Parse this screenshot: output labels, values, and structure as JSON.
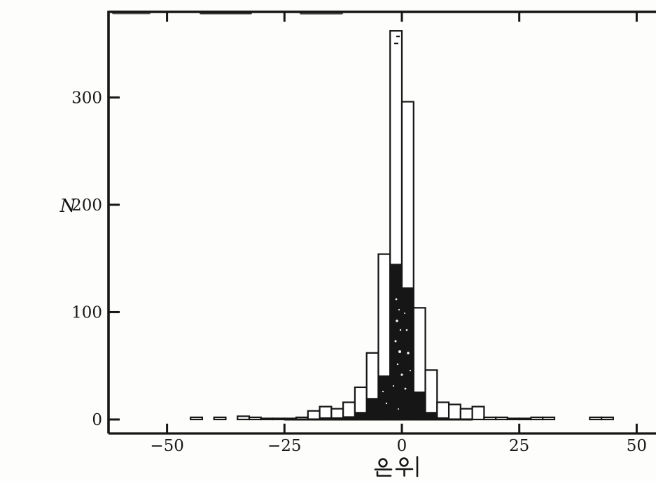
{
  "figure": {
    "background_color": "#fdfdfc",
    "ink_color": "#161616"
  },
  "chart_data": {
    "type": "bar",
    "subtype": "overlaid-step-histogram",
    "title": "",
    "xlabel": "은위",
    "ylabel": "N",
    "x_ticks": [
      -50,
      -25,
      0,
      25,
      50
    ],
    "y_ticks": [
      0,
      100,
      200,
      300
    ],
    "xlim": [
      -62.5,
      54
    ],
    "ylim": [
      0,
      380
    ],
    "grid": false,
    "legend": "none",
    "bin_width": 2.5,
    "series": [
      {
        "name": "open-histogram",
        "style": "white fill with black outline"
      },
      {
        "name": "filled-histogram",
        "style": "solid black fill"
      }
    ],
    "bins": [
      {
        "x": -45,
        "open": 2,
        "filled": 0
      },
      {
        "x": -40,
        "open": 2,
        "filled": 0
      },
      {
        "x": -35,
        "open": 3,
        "filled": 0
      },
      {
        "x": -32.5,
        "open": 2,
        "filled": 0
      },
      {
        "x": -30,
        "open": 1,
        "filled": 0
      },
      {
        "x": -27.5,
        "open": 1,
        "filled": 0
      },
      {
        "x": -25,
        "open": 1,
        "filled": 1
      },
      {
        "x": -22.5,
        "open": 2,
        "filled": 1
      },
      {
        "x": -20,
        "open": 8,
        "filled": 1
      },
      {
        "x": -17.5,
        "open": 12,
        "filled": 2
      },
      {
        "x": -15,
        "open": 10,
        "filled": 2
      },
      {
        "x": -12.5,
        "open": 16,
        "filled": 3
      },
      {
        "x": -10,
        "open": 30,
        "filled": 7
      },
      {
        "x": -7.5,
        "open": 62,
        "filled": 20
      },
      {
        "x": -5,
        "open": 154,
        "filled": 41
      },
      {
        "x": -2.5,
        "open": 362,
        "filled": 145
      },
      {
        "x": 0,
        "open": 296,
        "filled": 123
      },
      {
        "x": 2.5,
        "open": 104,
        "filled": 26
      },
      {
        "x": 5,
        "open": 46,
        "filled": 7
      },
      {
        "x": 7.5,
        "open": 16,
        "filled": 2
      },
      {
        "x": 10,
        "open": 14,
        "filled": 1
      },
      {
        "x": 12.5,
        "open": 10,
        "filled": 1
      },
      {
        "x": 15,
        "open": 12,
        "filled": 0
      },
      {
        "x": 17.5,
        "open": 2,
        "filled": 0
      },
      {
        "x": 20,
        "open": 2,
        "filled": 0
      },
      {
        "x": 22.5,
        "open": 1,
        "filled": 0
      },
      {
        "x": 25,
        "open": 1,
        "filled": 0
      },
      {
        "x": 27.5,
        "open": 2,
        "filled": 0
      },
      {
        "x": 30,
        "open": 2,
        "filled": 0
      },
      {
        "x": 40,
        "open": 2,
        "filled": 0
      },
      {
        "x": 42.5,
        "open": 2,
        "filled": 0
      }
    ]
  }
}
